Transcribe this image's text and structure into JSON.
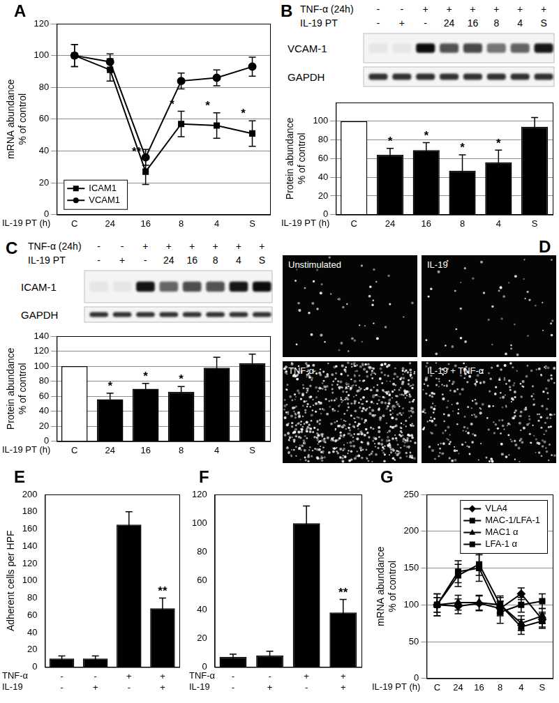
{
  "chart_data": [
    {
      "panel_label": "A",
      "type": "line",
      "categories": [
        "C",
        "24",
        "16",
        "8",
        "4",
        "S"
      ],
      "xlabel": "IL-19 PT (h)",
      "ylabel": [
        "mRNA abundance",
        "% of control"
      ],
      "ylim": [
        0,
        120
      ],
      "yticks": [
        0,
        20,
        40,
        60,
        80,
        100,
        120
      ],
      "grid": true,
      "legend": "lower left",
      "series": [
        {
          "name": "ICAM1",
          "color": "#000000",
          "marker": "square",
          "values": [
            100,
            91,
            27,
            57,
            56,
            51
          ],
          "errors": [
            7,
            7,
            8,
            8,
            8,
            8
          ]
        },
        {
          "name": "VCAM1",
          "color": "#000000",
          "marker": "circle",
          "values": [
            100,
            96,
            36,
            84,
            86,
            93
          ],
          "errors": [
            7,
            5,
            5,
            5,
            5,
            6
          ]
        }
      ],
      "significance": [
        null,
        null,
        "**",
        "*",
        "*",
        "*"
      ]
    },
    {
      "panel_label": "B",
      "type": "bar",
      "categories": [
        "C",
        "24",
        "16",
        "8",
        "4",
        "S"
      ],
      "xlabel": "IL-19 PT (h)",
      "ylabel": [
        "Protein abundance",
        "% of control"
      ],
      "ylim": [
        0,
        120
      ],
      "yticks": [
        0,
        20,
        40,
        60,
        80,
        100
      ],
      "grid": true,
      "values": [
        100,
        64,
        69,
        47,
        56,
        94
      ],
      "errors": [
        0,
        7,
        8,
        17,
        13,
        10
      ],
      "colors": [
        "#ffffff",
        "#000000",
        "#000000",
        "#000000",
        "#000000",
        "#000000"
      ],
      "significance": [
        null,
        "*",
        "*",
        "*",
        "*",
        null
      ]
    },
    {
      "panel_label": "C",
      "type": "bar",
      "categories": [
        "C",
        "24",
        "16",
        "8",
        "4",
        "S"
      ],
      "xlabel": "IL-19 PT (h)",
      "ylabel": [
        "Protein abundance",
        "% of control"
      ],
      "ylim": [
        0,
        140
      ],
      "yticks": [
        0,
        20,
        40,
        60,
        80,
        100,
        120,
        140
      ],
      "grid": true,
      "values": [
        100,
        56,
        70,
        66,
        98,
        104
      ],
      "errors": [
        0,
        8,
        7,
        7,
        14,
        12
      ],
      "colors": [
        "#ffffff",
        "#000000",
        "#000000",
        "#000000",
        "#000000",
        "#000000"
      ],
      "significance": [
        null,
        "*",
        "*",
        "*",
        null,
        null
      ]
    },
    {
      "panel_label": "E",
      "type": "bar",
      "x_rows": [
        {
          "label": "TNF-α",
          "values": [
            "-",
            "-",
            "+",
            "+"
          ]
        },
        {
          "label": "IL-19",
          "values": [
            "-",
            "+",
            "-",
            "+"
          ]
        }
      ],
      "ylabel": [
        "Adherent cells per HPF"
      ],
      "ylim": [
        0,
        200
      ],
      "yticks": [
        0,
        20,
        40,
        60,
        80,
        100,
        120,
        140,
        160,
        180,
        200
      ],
      "grid": false,
      "values": [
        10,
        10,
        165,
        68
      ],
      "errors": [
        3,
        3,
        15,
        12
      ],
      "color": "#000000",
      "significance": [
        null,
        null,
        null,
        "**"
      ]
    },
    {
      "panel_label": "F",
      "type": "bar",
      "x_rows": [
        {
          "label": "TNF-α",
          "values": [
            "-",
            "-",
            "+",
            "+"
          ]
        },
        {
          "label": "IL-19",
          "values": [
            "-",
            "+",
            "-",
            "+"
          ]
        }
      ],
      "ylim": [
        0,
        120
      ],
      "yticks": [
        0,
        20,
        40,
        60,
        80,
        100,
        120
      ],
      "grid": false,
      "values": [
        7,
        8,
        100,
        38
      ],
      "errors": [
        2,
        3,
        12,
        9
      ],
      "color": "#000000",
      "significance": [
        null,
        null,
        null,
        "**"
      ]
    },
    {
      "panel_label": "G",
      "type": "line",
      "categories": [
        "C",
        "24",
        "16",
        "8",
        "4",
        "S"
      ],
      "xlabel": "IL-19 PT (h)",
      "ylabel": [
        "mRNA abundance",
        "% of control"
      ],
      "ylim": [
        0,
        250
      ],
      "yticks": [
        0,
        50,
        100,
        150,
        200,
        250
      ],
      "grid": true,
      "legend": "upper right",
      "series": [
        {
          "name": "VLA4",
          "color": "#000000",
          "marker": "diamond",
          "values": [
            100,
            98,
            102,
            95,
            115,
            80
          ],
          "errors": [
            15,
            10,
            10,
            10,
            8,
            10
          ]
        },
        {
          "name": "MAC-1/LFA-1",
          "color": "#000000",
          "marker": "square",
          "values": [
            100,
            145,
            150,
            90,
            100,
            105
          ],
          "errors": [
            15,
            15,
            18,
            15,
            10,
            10
          ]
        },
        {
          "name": "MAC1 α",
          "color": "#000000",
          "marker": "triangle",
          "values": [
            100,
            103,
            103,
            100,
            75,
            85
          ],
          "errors": [
            10,
            10,
            10,
            10,
            10,
            10
          ]
        },
        {
          "name": "LFA-1 α",
          "color": "#000000",
          "marker": "square",
          "values": [
            100,
            140,
            155,
            100,
            70,
            78
          ],
          "errors": [
            10,
            15,
            15,
            12,
            10,
            10
          ]
        }
      ]
    }
  ],
  "blots": [
    {
      "panel_label": "B",
      "header_rows": [
        {
          "label": "TNF-α (24h)",
          "values": [
            "-",
            "-",
            "+",
            "+",
            "+",
            "+",
            "+",
            "+"
          ]
        },
        {
          "label": "IL-19 PT",
          "values": [
            "-",
            "+",
            "-",
            "24",
            "16",
            "8",
            "4",
            "S"
          ]
        }
      ],
      "bands": [
        "VCAM-1",
        "GAPDH"
      ]
    },
    {
      "panel_label": "C",
      "header_rows": [
        {
          "label": "TNF-α (24h)",
          "values": [
            "-",
            "-",
            "+",
            "+",
            "+",
            "+",
            "+",
            "+"
          ]
        },
        {
          "label": "IL-19 PT",
          "values": [
            "-",
            "+",
            "-",
            "24",
            "16",
            "8",
            "4",
            "S"
          ]
        }
      ],
      "bands": [
        "ICAM-1",
        "GAPDH"
      ]
    }
  ],
  "micrographs": {
    "panel_label": "D",
    "panels": [
      "Unstimulated",
      "IL-19",
      "TNF-α",
      "IL-19 + TNF-α"
    ]
  }
}
